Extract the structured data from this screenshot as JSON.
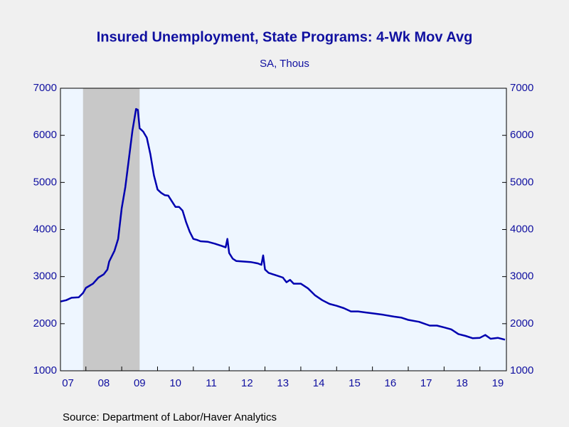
{
  "chart_data": {
    "type": "line",
    "title": "Insured Unemployment, State Programs: 4-Wk Mov Avg",
    "subtitle": "SA, Thous",
    "source": "Source:  Department of Labor/Haver Analytics",
    "color": "#0000b0",
    "shaded": [
      2007.92,
      2009.5
    ],
    "x": [
      2007.29,
      2007.45,
      2007.6,
      2007.8,
      2007.92,
      2008.0,
      2008.2,
      2008.35,
      2008.5,
      2008.6,
      2008.65,
      2008.8,
      2008.9,
      2009.0,
      2009.1,
      2009.2,
      2009.3,
      2009.4,
      2009.45,
      2009.5,
      2009.6,
      2009.7,
      2009.8,
      2009.9,
      2010.0,
      2010.1,
      2010.2,
      2010.3,
      2010.4,
      2010.5,
      2010.6,
      2010.7,
      2010.8,
      2010.9,
      2011.0,
      2011.1,
      2011.2,
      2011.4,
      2011.6,
      2011.8,
      2011.9,
      2011.95,
      2012.0,
      2012.1,
      2012.2,
      2012.4,
      2012.6,
      2012.8,
      2012.9,
      2012.95,
      2013.0,
      2013.1,
      2013.3,
      2013.5,
      2013.6,
      2013.7,
      2013.8,
      2014.0,
      2014.2,
      2014.4,
      2014.6,
      2014.8,
      2015.0,
      2015.2,
      2015.4,
      2015.6,
      2015.8,
      2016.0,
      2016.3,
      2016.6,
      2016.8,
      2017.0,
      2017.3,
      2017.6,
      2017.8,
      2018.0,
      2018.2,
      2018.4,
      2018.6,
      2018.8,
      2019.0,
      2019.15,
      2019.3,
      2019.5,
      2019.7
    ],
    "values": [
      2470,
      2500,
      2550,
      2560,
      2650,
      2760,
      2850,
      2980,
      3050,
      3150,
      3320,
      3550,
      3800,
      4450,
      4900,
      5500,
      6100,
      6560,
      6540,
      6150,
      6080,
      5950,
      5600,
      5150,
      4850,
      4780,
      4730,
      4720,
      4600,
      4480,
      4480,
      4400,
      4150,
      3950,
      3800,
      3780,
      3750,
      3740,
      3700,
      3650,
      3620,
      3800,
      3500,
      3380,
      3330,
      3320,
      3310,
      3280,
      3250,
      3450,
      3150,
      3080,
      3030,
      2980,
      2880,
      2930,
      2850,
      2850,
      2750,
      2600,
      2500,
      2420,
      2380,
      2330,
      2260,
      2260,
      2240,
      2220,
      2190,
      2150,
      2130,
      2080,
      2040,
      1960,
      1960,
      1920,
      1880,
      1780,
      1740,
      1690,
      1700,
      1760,
      1680,
      1700,
      1660
    ],
    "xlim": [
      2007.29,
      2019.74
    ],
    "xticks": [
      {
        "value": 2007,
        "label": "07"
      },
      {
        "value": 2008,
        "label": "08"
      },
      {
        "value": 2009,
        "label": "09"
      },
      {
        "value": 2010,
        "label": "10"
      },
      {
        "value": 2011,
        "label": "11"
      },
      {
        "value": 2012,
        "label": "12"
      },
      {
        "value": 2013,
        "label": "13"
      },
      {
        "value": 2014,
        "label": "14"
      },
      {
        "value": 2015,
        "label": "15"
      },
      {
        "value": 2016,
        "label": "16"
      },
      {
        "value": 2017,
        "label": "17"
      },
      {
        "value": 2018,
        "label": "18"
      },
      {
        "value": 2019,
        "label": "19"
      }
    ],
    "ylim": [
      1000,
      7000
    ],
    "yticks": [
      1000,
      2000,
      3000,
      4000,
      5000,
      6000,
      7000
    ],
    "y2lim": [
      1000,
      7000
    ],
    "y2ticks": [
      1000,
      2000,
      3000,
      4000,
      5000,
      6000,
      7000
    ]
  }
}
